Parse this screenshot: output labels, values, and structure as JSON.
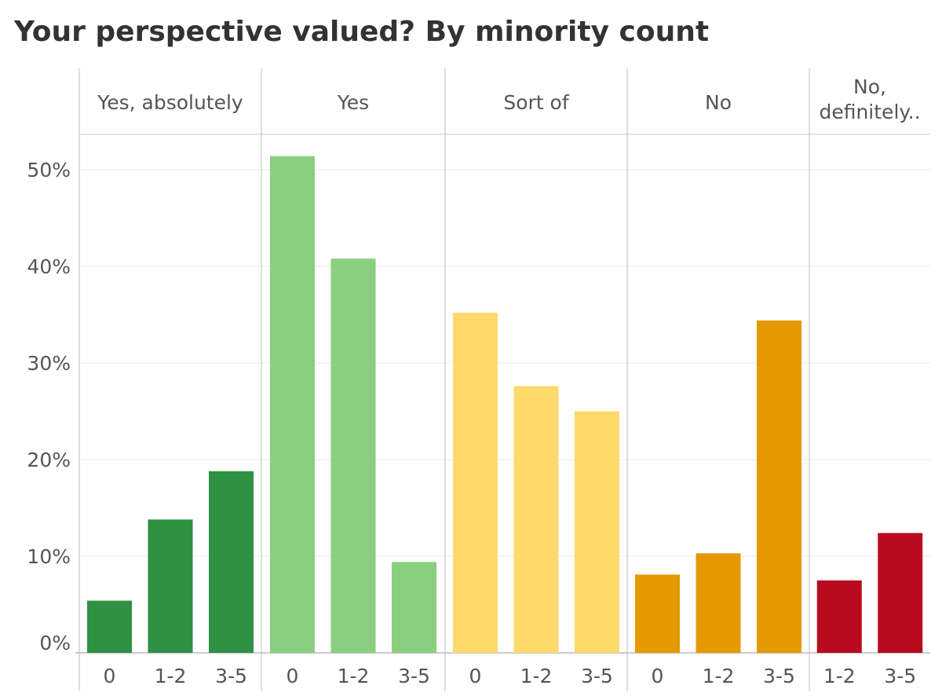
{
  "chart_data": {
    "type": "bar",
    "title": "Your perspective valued? By minority count",
    "xlabel": "",
    "ylabel": "",
    "ylim": [
      0,
      53.5
    ],
    "y_ticks": [
      "0%",
      "10%",
      "20%",
      "30%",
      "40%",
      "50%"
    ],
    "y_tick_values": [
      0,
      10,
      20,
      30,
      40,
      50
    ],
    "grid": true,
    "legend": "none",
    "panels": [
      {
        "name": "Yes, absolutely",
        "name_lines": [
          "Yes, absolutely"
        ],
        "color": "#2e9143",
        "categories": [
          "0",
          "1-2",
          "3-5"
        ],
        "values": [
          5.4,
          13.8,
          18.8
        ]
      },
      {
        "name": "Yes",
        "name_lines": [
          "Yes"
        ],
        "color": "#8bce7f",
        "categories": [
          "0",
          "1-2",
          "3-5"
        ],
        "values": [
          51.4,
          40.8,
          9.4
        ]
      },
      {
        "name": "Sort of",
        "name_lines": [
          "Sort of"
        ],
        "color": "#fed96b",
        "categories": [
          "0",
          "1-2",
          "3-5"
        ],
        "values": [
          35.2,
          27.6,
          25.0
        ]
      },
      {
        "name": "No",
        "name_lines": [
          "No"
        ],
        "color": "#e59900",
        "categories": [
          "0",
          "1-2",
          "3-5"
        ],
        "values": [
          8.1,
          10.3,
          34.4
        ]
      },
      {
        "name": "No, definitely..",
        "name_lines": [
          "No,",
          "definitely.."
        ],
        "color": "#b90a1e",
        "categories": [
          "1-2",
          "3-5"
        ],
        "values": [
          7.5,
          12.4
        ]
      }
    ]
  }
}
